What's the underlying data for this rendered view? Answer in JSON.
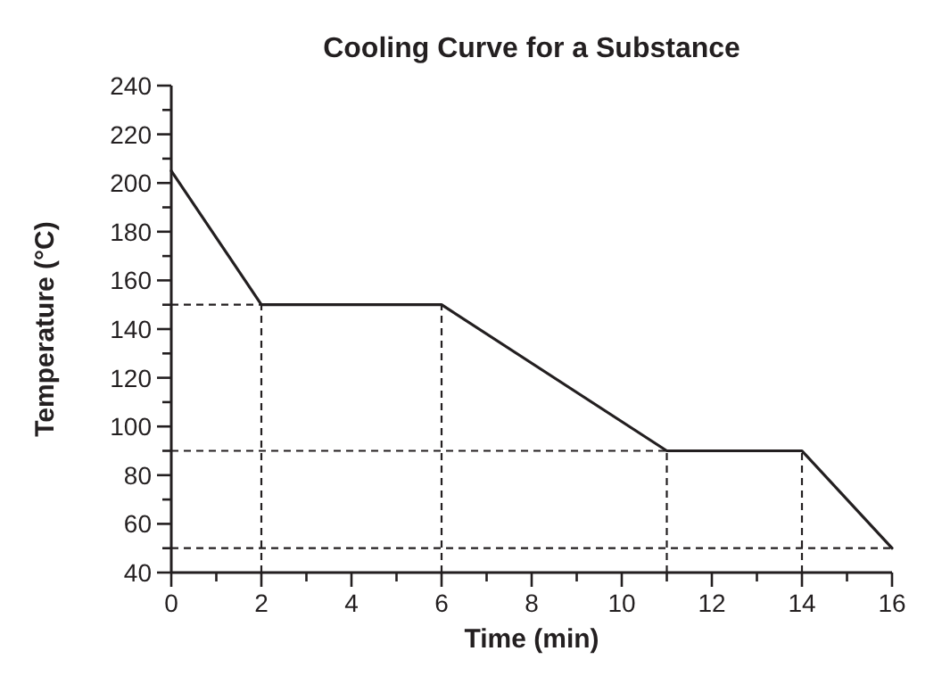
{
  "chart_data": {
    "type": "line",
    "title": "Cooling Curve for a Substance",
    "xlabel": "Time (min)",
    "ylabel": "Temperature (°C)",
    "x": [
      0,
      2,
      6,
      11,
      14,
      16
    ],
    "series": [
      {
        "color": "#231f20",
        "values": [
          205,
          150,
          150,
          90,
          90,
          50
        ]
      }
    ],
    "xlim": [
      0,
      16
    ],
    "ylim": [
      40,
      240
    ],
    "xticks": [
      0,
      {
        "value": 1,
        "label": null
      },
      2,
      {
        "value": 3,
        "label": null
      },
      4,
      {
        "value": 5,
        "label": null
      },
      6,
      {
        "value": 7,
        "label": null
      },
      8,
      {
        "value": 9,
        "label": null
      },
      10,
      {
        "value": 11,
        "label": null
      },
      12,
      {
        "value": 13,
        "label": null
      },
      14,
      {
        "value": 15,
        "label": null
      },
      16
    ],
    "yticks": [
      40,
      {
        "value": 50,
        "label": null
      },
      60,
      {
        "value": 70,
        "label": null
      },
      80,
      {
        "value": 90,
        "label": null
      },
      100,
      {
        "value": 110,
        "label": null
      },
      120,
      {
        "value": 130,
        "label": null
      },
      140,
      {
        "value": 150,
        "label": null
      },
      160,
      {
        "value": 170,
        "label": null
      },
      180,
      {
        "value": 190,
        "label": null
      },
      200,
      {
        "value": 210,
        "label": null
      },
      220,
      {
        "value": 230,
        "label": null
      },
      240
    ],
    "ref_lines": [
      {
        "axis": "y",
        "value": 150,
        "color": "#231f20",
        "line_style": "dashed"
      },
      {
        "axis": "y",
        "value": 90,
        "color": "#231f20",
        "line_style": "dashed"
      },
      {
        "axis": "y",
        "value": 50,
        "color": "#231f20",
        "line_style": "dashed"
      },
      {
        "axis": "x",
        "value": 2,
        "color": "#231f20",
        "line_style": "dashed"
      },
      {
        "axis": "x",
        "value": 6,
        "color": "#231f20",
        "line_style": "dashed"
      },
      {
        "axis": "x",
        "value": 11,
        "color": "#231f20",
        "line_style": "dashed"
      },
      {
        "axis": "x",
        "value": 14,
        "color": "#231f20",
        "line_style": "dashed"
      }
    ],
    "grid": false,
    "marker": "none",
    "line_style": "solid"
  }
}
